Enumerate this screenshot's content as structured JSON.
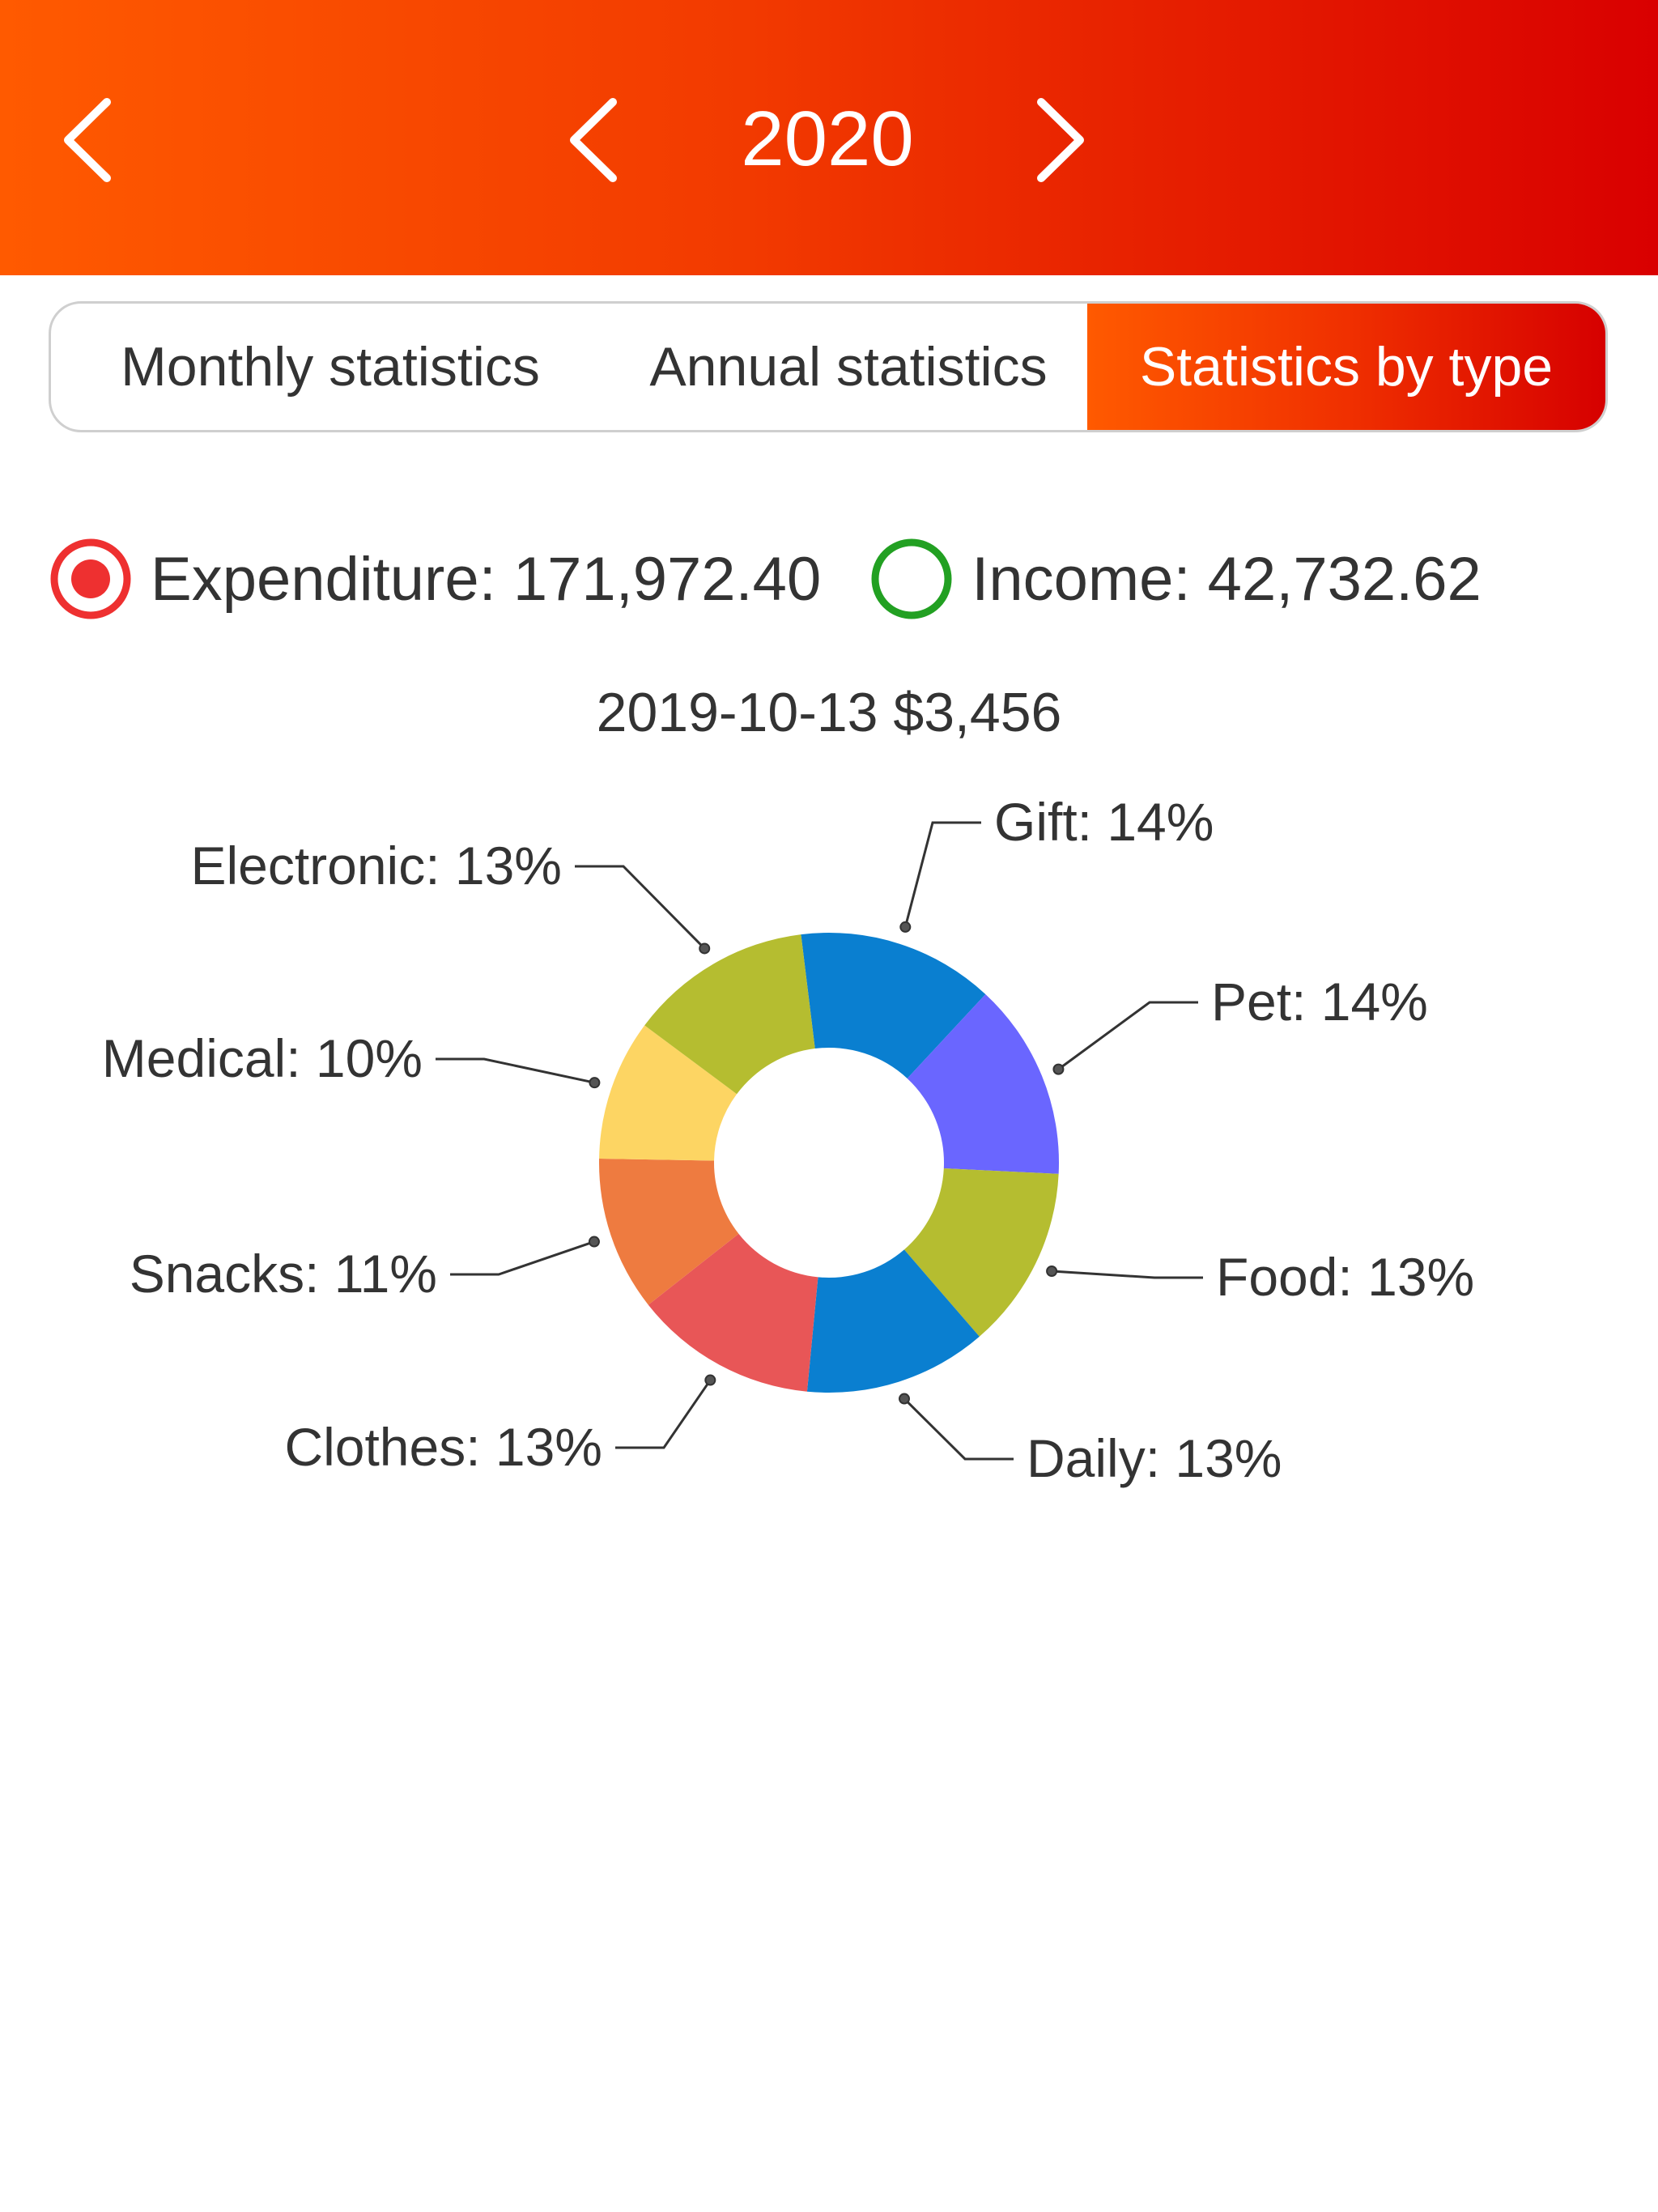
{
  "header": {
    "year": "2020",
    "back_icon": "chevron-left-icon",
    "prev_icon": "chevron-left-icon",
    "next_icon": "chevron-right-icon"
  },
  "tabs": [
    {
      "label": "Monthly statistics",
      "active": false
    },
    {
      "label": "Annual statistics",
      "active": false
    },
    {
      "label": "Statistics by type",
      "active": true
    }
  ],
  "legend": {
    "expenditure": {
      "label": "Expenditure: 171,972.40",
      "color": "#ee3030",
      "selected": true
    },
    "income": {
      "label": "Income: 42,732.62",
      "color": "#22a022",
      "selected": false
    }
  },
  "selected_point": "2019-10-13 $3,456",
  "colors": {
    "accent_start": "#ff5a00",
    "accent_end": "#d60000"
  },
  "chart_data": {
    "type": "pie",
    "donut": true,
    "slices": [
      {
        "label": "Gift: 14%",
        "name": "Gift",
        "value": 14,
        "color": "#0a7fd0"
      },
      {
        "label": "Pet: 14%",
        "name": "Pet",
        "value": 14,
        "color": "#6a66ff"
      },
      {
        "label": "Food: 13%",
        "name": "Food",
        "value": 13,
        "color": "#b5bd30"
      },
      {
        "label": "Daily: 13%",
        "name": "Daily",
        "value": 13,
        "color": "#0a7fd0"
      },
      {
        "label": "Clothes: 13%",
        "name": "Clothes",
        "value": 13,
        "color": "#e85657"
      },
      {
        "label": "Snacks: 11%",
        "name": "Snacks",
        "value": 11,
        "color": "#ee7b40"
      },
      {
        "label": "Medical: 10%",
        "name": "Medical",
        "value": 10,
        "color": "#fdd563"
      },
      {
        "label": "Electronic: 13%",
        "name": "Electronic",
        "value": 13,
        "color": "#b5bd30"
      }
    ]
  }
}
